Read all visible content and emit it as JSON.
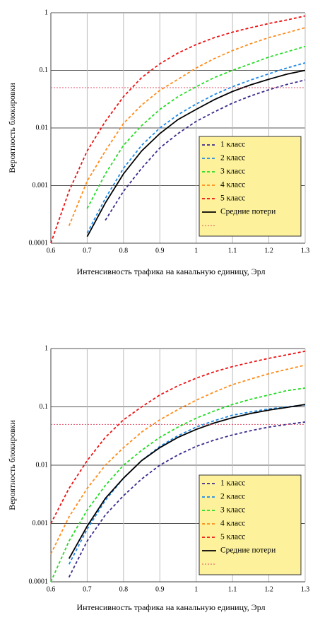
{
  "chart_data": [
    {
      "type": "line",
      "ylog": true,
      "grid": true,
      "legend": "lower right",
      "ylabel": "Вероятность блокировки",
      "xlabel": "Интенсивность трафика на канальную единицу, Эрл",
      "x": [
        0.6,
        0.65,
        0.7,
        0.75,
        0.8,
        0.85,
        0.9,
        0.95,
        1.0,
        1.05,
        1.1,
        1.15,
        1.2,
        1.25,
        1.3
      ],
      "xlim": [
        0.6,
        1.3
      ],
      "xticks": [
        0.6,
        0.7,
        0.8,
        0.9,
        1,
        1.1,
        1.2,
        1.3
      ],
      "ylim": [
        0.0001,
        1
      ],
      "yticks": [
        0.0001,
        0.001,
        0.01,
        0.1,
        1
      ],
      "series": [
        {
          "name": "1 класс",
          "color": "#3b2a8c",
          "line_style": "dashed",
          "values": [
            null,
            null,
            null,
            0.00025,
            0.0008,
            0.002,
            0.0045,
            0.008,
            0.013,
            0.019,
            0.027,
            0.036,
            0.046,
            0.057,
            0.068
          ]
        },
        {
          "name": "2 класс",
          "color": "#1e88e5",
          "line_style": "dashed",
          "values": [
            null,
            null,
            0.00015,
            0.0006,
            0.002,
            0.005,
            0.01,
            0.017,
            0.026,
            0.038,
            0.052,
            0.068,
            0.087,
            0.11,
            0.135
          ]
        },
        {
          "name": "3 класс",
          "color": "#22dd22",
          "line_style": "dashed",
          "values": [
            null,
            null,
            0.0004,
            0.0016,
            0.005,
            0.011,
            0.021,
            0.035,
            0.052,
            0.075,
            0.1,
            0.13,
            0.17,
            0.21,
            0.26
          ]
        },
        {
          "name": "4 класс",
          "color": "#ff8c1a",
          "line_style": "dashed",
          "values": [
            null,
            0.0002,
            0.0012,
            0.004,
            0.012,
            0.025,
            0.045,
            0.07,
            0.11,
            0.16,
            0.22,
            0.29,
            0.37,
            0.45,
            0.55
          ]
        },
        {
          "name": "5 класс",
          "color": "#ee1111",
          "line_style": "dashed",
          "values": [
            0.0001,
            0.0008,
            0.004,
            0.013,
            0.035,
            0.075,
            0.13,
            0.2,
            0.28,
            0.37,
            0.46,
            0.55,
            0.65,
            0.75,
            0.88
          ]
        },
        {
          "name": "Средние потери",
          "color": "#000000",
          "line_style": "solid",
          "values": [
            null,
            null,
            0.00013,
            0.0005,
            0.0016,
            0.004,
            0.008,
            0.014,
            0.021,
            0.031,
            0.043,
            0.056,
            0.07,
            0.086,
            0.1
          ]
        },
        {
          "color": "#e0506a",
          "line_style": "dotted",
          "values": [
            0.05,
            0.05,
            0.05,
            0.05,
            0.05,
            0.05,
            0.05,
            0.05,
            0.05,
            0.05,
            0.05,
            0.05,
            0.05,
            0.05,
            0.05
          ]
        }
      ]
    },
    {
      "type": "line",
      "ylog": true,
      "grid": true,
      "legend": "lower right",
      "ylabel": "Вероятность блокировки",
      "xlabel": "Интенсивность трафика на канальную единицу, Эрл",
      "x": [
        0.6,
        0.65,
        0.7,
        0.75,
        0.8,
        0.85,
        0.9,
        0.95,
        1.0,
        1.05,
        1.1,
        1.15,
        1.2,
        1.25,
        1.3
      ],
      "xlim": [
        0.6,
        1.3
      ],
      "xticks": [
        0.6,
        0.7,
        0.8,
        0.9,
        1,
        1.1,
        1.2,
        1.3
      ],
      "ylim": [
        0.0001,
        1
      ],
      "yticks": [
        0.0001,
        0.001,
        0.01,
        0.1,
        1
      ],
      "series": [
        {
          "name": "1 класс",
          "color": "#3b2a8c",
          "line_style": "dashed",
          "values": [
            null,
            0.00012,
            0.0005,
            0.0014,
            0.003,
            0.0058,
            0.01,
            0.015,
            0.021,
            0.027,
            0.033,
            0.039,
            0.045,
            0.05,
            0.055
          ]
        },
        {
          "name": "2 класс",
          "color": "#1e88e5",
          "line_style": "dashed",
          "values": [
            null,
            0.0002,
            0.0008,
            0.0025,
            0.006,
            0.012,
            0.021,
            0.032,
            0.045,
            0.058,
            0.072,
            0.082,
            0.092,
            0.1,
            0.108
          ]
        },
        {
          "name": "3 класс",
          "color": "#22dd22",
          "line_style": "dashed",
          "values": [
            0.0001,
            0.0005,
            0.0017,
            0.0045,
            0.01,
            0.018,
            0.03,
            0.045,
            0.064,
            0.085,
            0.11,
            0.135,
            0.16,
            0.19,
            0.21
          ]
        },
        {
          "name": "4 класс",
          "color": "#ff8c1a",
          "line_style": "dashed",
          "values": [
            0.0003,
            0.0013,
            0.004,
            0.01,
            0.02,
            0.037,
            0.06,
            0.09,
            0.13,
            0.18,
            0.24,
            0.3,
            0.37,
            0.44,
            0.52
          ]
        },
        {
          "name": "5 класс",
          "color": "#ee1111",
          "line_style": "dashed",
          "values": [
            0.001,
            0.004,
            0.012,
            0.03,
            0.06,
            0.1,
            0.16,
            0.23,
            0.31,
            0.4,
            0.49,
            0.58,
            0.68,
            0.78,
            0.9
          ]
        },
        {
          "name": "Средние потери",
          "color": "#000000",
          "line_style": "solid",
          "values": [
            null,
            0.00025,
            0.0009,
            0.0027,
            0.006,
            0.012,
            0.02,
            0.03,
            0.041,
            0.053,
            0.065,
            0.077,
            0.088,
            0.098,
            0.11
          ]
        },
        {
          "color": "#e0506a",
          "line_style": "dotted",
          "values": [
            0.05,
            0.05,
            0.05,
            0.05,
            0.05,
            0.05,
            0.05,
            0.05,
            0.05,
            0.05,
            0.05,
            0.05,
            0.05,
            0.05,
            0.05
          ]
        }
      ]
    }
  ]
}
